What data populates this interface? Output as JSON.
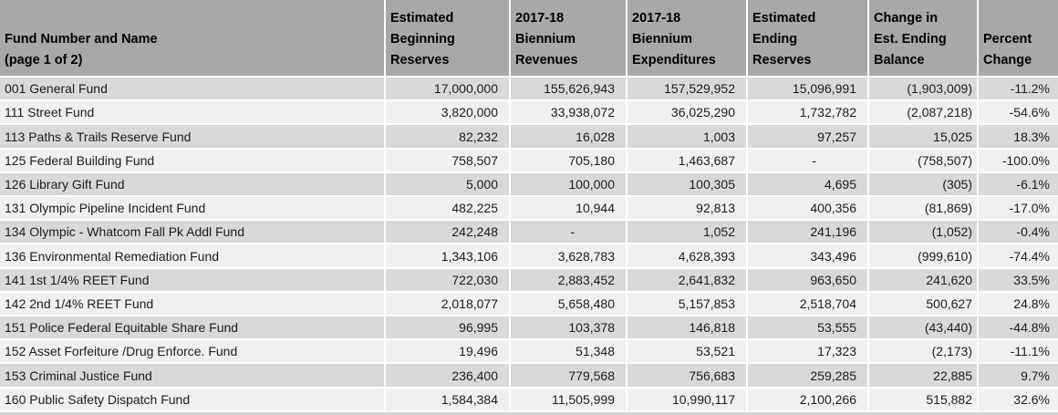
{
  "colors": {
    "header_bg": "#a7a8a8",
    "row_dark_bg": "#d8d9d9",
    "row_light_bg": "#eff0f0",
    "grid_line": "#ffffff",
    "header_text": "#000000",
    "body_text": "#1c1c1c",
    "partial_row_strip": "#d4d5d5"
  },
  "table": {
    "columns": [
      {
        "id": "fund_name",
        "align": "left",
        "header_lines": [
          "Fund Number and Name",
          "(page 1 of 2)"
        ]
      },
      {
        "id": "beginning_reserves",
        "align": "right",
        "header_lines": [
          "Estimated",
          "Beginning",
          "Reserves"
        ]
      },
      {
        "id": "biennium_revenues",
        "align": "right",
        "header_lines": [
          "2017-18",
          "Biennium",
          "Revenues"
        ]
      },
      {
        "id": "biennium_expenditures",
        "align": "right",
        "header_lines": [
          "2017-18",
          "Biennium",
          "Expenditures"
        ]
      },
      {
        "id": "ending_reserves",
        "align": "right",
        "header_lines": [
          "Estimated",
          "Ending",
          "Reserves"
        ]
      },
      {
        "id": "change_ending_balance",
        "align": "right",
        "header_lines": [
          "Change in",
          "Est. Ending",
          "Balance"
        ]
      },
      {
        "id": "percent_change",
        "align": "right",
        "header_lines": [
          "Percent",
          "Change"
        ]
      }
    ],
    "rows": [
      [
        "001 General Fund",
        "17,000,000",
        "155,626,943",
        "157,529,952",
        "15,096,991",
        "(1,903,009)",
        "-11.2%"
      ],
      [
        "111 Street Fund",
        "3,820,000",
        "33,938,072",
        "36,025,290",
        "1,732,782",
        "(2,087,218)",
        "-54.6%"
      ],
      [
        "113 Paths & Trails Reserve Fund",
        "82,232",
        "16,028",
        "1,003",
        "97,257",
        "15,025",
        "18.3%"
      ],
      [
        "125 Federal Building Fund",
        "758,507",
        "705,180",
        "1,463,687",
        "-",
        "(758,507)",
        "-100.0%"
      ],
      [
        "126 Library Gift Fund",
        "5,000",
        "100,000",
        "100,305",
        "4,695",
        "(305)",
        "-6.1%"
      ],
      [
        "131 Olympic Pipeline Incident Fund",
        "482,225",
        "10,944",
        "92,813",
        "400,356",
        "(81,869)",
        "-17.0%"
      ],
      [
        "134 Olympic - Whatcom Fall Pk Addl Fund",
        "242,248",
        "-",
        "1,052",
        "241,196",
        "(1,052)",
        "-0.4%"
      ],
      [
        "136 Environmental Remediation Fund",
        "1,343,106",
        "3,628,783",
        "4,628,393",
        "343,496",
        "(999,610)",
        "-74.4%"
      ],
      [
        "141 1st 1/4% REET Fund",
        "722,030",
        "2,883,452",
        "2,641,832",
        "963,650",
        "241,620",
        "33.5%"
      ],
      [
        "142 2nd 1/4% REET Fund",
        "2,018,077",
        "5,658,480",
        "5,157,853",
        "2,518,704",
        "500,627",
        "24.8%"
      ],
      [
        "151 Police Federal Equitable Share Fund",
        "96,995",
        "103,378",
        "146,818",
        "53,555",
        "(43,440)",
        "-44.8%"
      ],
      [
        "152 Asset Forfeiture /Drug Enforce. Fund",
        "19,496",
        "51,348",
        "53,521",
        "17,323",
        "(2,173)",
        "-11.1%"
      ],
      [
        "153 Criminal Justice Fund",
        "236,400",
        "779,568",
        "756,683",
        "259,285",
        "22,885",
        "9.7%"
      ],
      [
        "160 Public Safety Dispatch Fund",
        "1,584,384",
        "11,505,999",
        "10,990,117",
        "2,100,266",
        "515,882",
        "32.6%"
      ]
    ]
  }
}
